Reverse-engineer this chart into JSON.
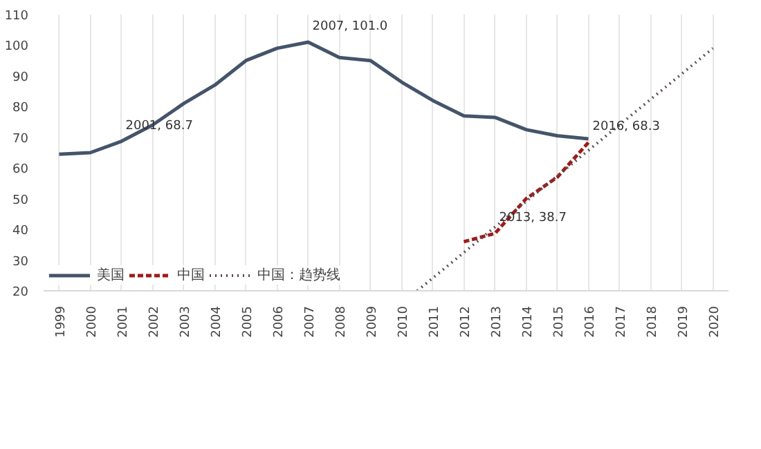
{
  "chart_data": {
    "type": "line",
    "xlim": [
      1998.5,
      2020.5
    ],
    "ylim": [
      20,
      110
    ],
    "xticks": [
      1999,
      2000,
      2001,
      2002,
      2003,
      2004,
      2005,
      2006,
      2007,
      2008,
      2009,
      2010,
      2011,
      2012,
      2013,
      2014,
      2015,
      2016,
      2017,
      2018,
      2019,
      2020
    ],
    "yticks": [
      20,
      30,
      40,
      50,
      60,
      70,
      80,
      90,
      100,
      110
    ],
    "grid": "x",
    "legend": "bottom",
    "series": [
      {
        "name": "美国",
        "color": "#44546a",
        "line_style": "solid",
        "x": [
          1999,
          2000,
          2001,
          2002,
          2003,
          2004,
          2005,
          2006,
          2007,
          2008,
          2009,
          2010,
          2011,
          2012,
          2013,
          2014,
          2015,
          2016
        ],
        "values": [
          64.5,
          65,
          68.7,
          74,
          81,
          87,
          95,
          99,
          101.0,
          96,
          95,
          88,
          82,
          77,
          76.5,
          72.5,
          70.5,
          69.5
        ]
      },
      {
        "name": "中国",
        "color": "#9e1b1b",
        "line_style": "dashed",
        "x": [
          2012,
          2013,
          2014,
          2015,
          2016
        ],
        "values": [
          36,
          38.7,
          50,
          57,
          68.3
        ]
      },
      {
        "name": "中国：趋势线",
        "color": "#5a4a4a",
        "line_style": "dotted",
        "x": [
          2010.5,
          2020
        ],
        "values": [
          20,
          99
        ]
      }
    ],
    "annotations": [
      {
        "text": "2001, 68.7",
        "x": 2001,
        "y": 68.7
      },
      {
        "text": "2007, 101.0",
        "x": 2007,
        "y": 101.0
      },
      {
        "text": "2013, 38.7",
        "x": 2013,
        "y": 38.7
      },
      {
        "text": "2016, 68.3",
        "x": 2016,
        "y": 68.3
      }
    ]
  }
}
